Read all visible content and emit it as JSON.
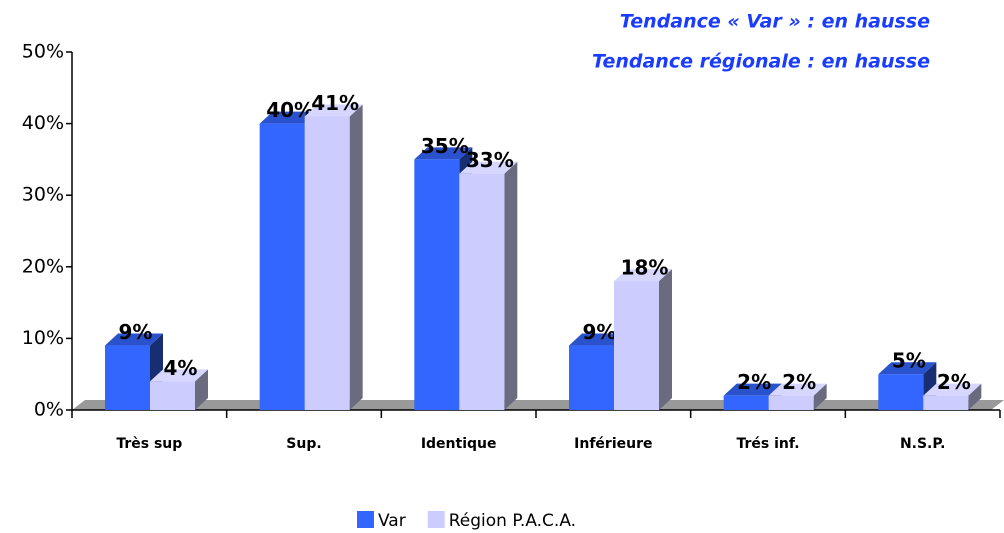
{
  "chart_data": {
    "type": "bar3d",
    "annotations": [
      "Tendance « Var » : en hausse",
      "Tendance régionale : en hausse"
    ],
    "categories": [
      "Très sup",
      "Sup.",
      "Identique",
      "Inférieure",
      "Trés inf.",
      "N.S.P."
    ],
    "series": [
      {
        "name": "Var",
        "color": "#3366ff",
        "values": [
          9,
          40,
          35,
          9,
          2,
          5
        ],
        "value_labels": [
          "9%",
          "40%",
          "35%",
          "9%",
          "2%",
          "5%"
        ]
      },
      {
        "name": "Région P.A.C.A.",
        "color": "#ccccff",
        "values": [
          4,
          41,
          33,
          18,
          2,
          2
        ],
        "value_labels": [
          "4%",
          "41%",
          "33%",
          "18%",
          "2%",
          "2%"
        ]
      }
    ],
    "ylim": [
      0,
      50
    ],
    "yticks": [
      {
        "value": 0,
        "label": "0%"
      },
      {
        "value": 10,
        "label": "10%"
      },
      {
        "value": 20,
        "label": "20%"
      },
      {
        "value": 30,
        "label": "30%"
      },
      {
        "value": 40,
        "label": "40%"
      },
      {
        "value": 50,
        "label": "50%"
      }
    ],
    "legend": "bottom"
  }
}
